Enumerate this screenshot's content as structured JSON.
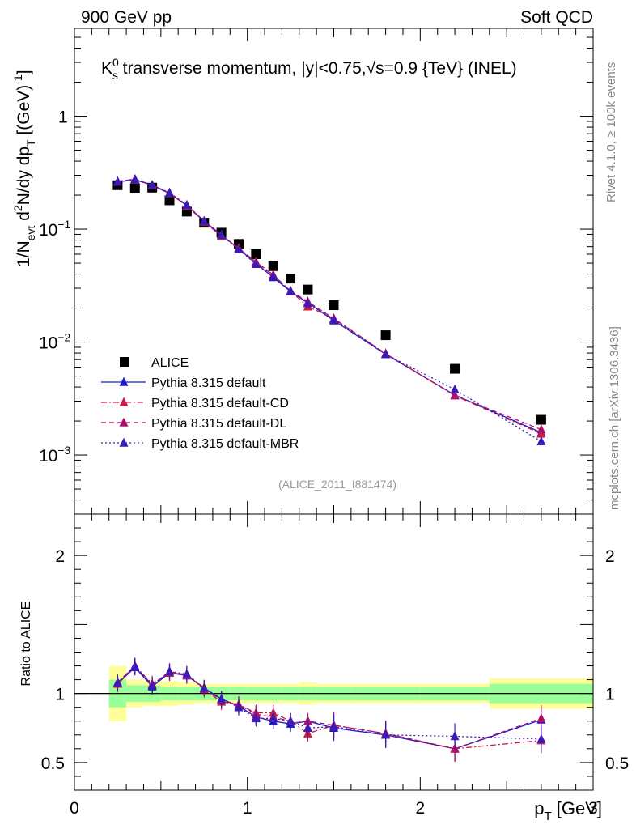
{
  "header": {
    "left": "900 GeV pp",
    "right": "Soft QCD"
  },
  "side_text": {
    "rivet": "Rivet 4.1.0, ≥ 100k events",
    "mcplots": "mcplots.cern.ch [arXiv:1306.3436]"
  },
  "chart_data": {
    "type": "scatter",
    "title": {
      "prefix": "K",
      "sup": "0",
      "sub": "s",
      "text": " transverse momentum, |y|<0.75,√s=0.9 {TeV} (INEL)"
    },
    "analysis_tag": "(ALICE_2011_I881474)",
    "ylabel_main": {
      "a": "1/N",
      "sub1": "evt",
      "b": "  d",
      "sup1": "2",
      "c": "N/dy dp",
      "sub2": "T",
      "d": "  [(GeV)",
      "sup2": "-1",
      "e": "]"
    },
    "ylabel_ratio": "Ratio to ALICE",
    "xlabel": {
      "p": "p",
      "sub": "T",
      "unit": " [GeV]"
    },
    "xlim": [
      0,
      3
    ],
    "ylim_main": [
      0.0003,
      6
    ],
    "ylim_ratio": [
      0.3,
      2.3
    ],
    "x_ticks": [
      "0",
      "1",
      "2",
      "3"
    ],
    "y_ticks_main": [
      {
        "base": "10",
        "exp": "−3",
        "value": 0.001
      },
      {
        "base": "10",
        "exp": "−2",
        "value": 0.01
      },
      {
        "base": "10",
        "exp": "−1",
        "value": 0.1
      },
      {
        "base": "1",
        "exp": "",
        "value": 1
      }
    ],
    "y_ticks_ratio": [
      {
        "label": "0.5",
        "value": 0.5
      },
      {
        "label": "1",
        "value": 1
      },
      {
        "label": "2",
        "value": 2
      }
    ],
    "x": [
      0.25,
      0.35,
      0.45,
      0.55,
      0.65,
      0.75,
      0.85,
      0.95,
      1.05,
      1.15,
      1.25,
      1.35,
      1.5,
      1.8,
      2.2,
      2.7
    ],
    "bin_edges": [
      0.2,
      0.3,
      0.4,
      0.5,
      0.6,
      0.7,
      0.8,
      0.9,
      1.0,
      1.1,
      1.2,
      1.3,
      1.4,
      1.6,
      2.0,
      2.4,
      3.0
    ],
    "data_band_inner": [
      0.1,
      0.06,
      0.06,
      0.05,
      0.05,
      0.05,
      0.05,
      0.05,
      0.05,
      0.05,
      0.05,
      0.05,
      0.05,
      0.05,
      0.05,
      0.07
    ],
    "data_band_outer": [
      0.2,
      0.1,
      0.09,
      0.09,
      0.08,
      0.07,
      0.07,
      0.07,
      0.07,
      0.07,
      0.07,
      0.08,
      0.07,
      0.07,
      0.07,
      0.11
    ],
    "series": [
      {
        "name": "ALICE",
        "color": "#000000",
        "marker": "square",
        "dash": "",
        "values": [
          0.245,
          0.23,
          0.233,
          0.18,
          0.143,
          0.114,
          0.093,
          0.074,
          0.06,
          0.047,
          0.0365,
          0.0292,
          0.0212,
          0.0115,
          0.0058,
          0.00205
        ]
      },
      {
        "name": "Pythia 8.315 default",
        "color": "#1a1acc",
        "marker": "triangle",
        "dash": "",
        "values": [
          0.262,
          0.274,
          0.245,
          0.207,
          0.162,
          0.118,
          0.089,
          0.067,
          0.0495,
          0.0375,
          0.028,
          0.0223,
          0.0155,
          0.0078,
          0.0034,
          0.00158
        ],
        "ratio": [
          1.07,
          1.19,
          1.05,
          1.15,
          1.13,
          1.04,
          0.96,
          0.91,
          0.83,
          0.8,
          0.78,
          0.8,
          0.75,
          0.7,
          0.6,
          0.81
        ]
      },
      {
        "name": "Pythia 8.315 default-CD",
        "color": "#cc1a40",
        "marker": "triangle",
        "dash": "7,3,2,3",
        "values": [
          0.263,
          0.276,
          0.246,
          0.208,
          0.161,
          0.116,
          0.087,
          0.068,
          0.0512,
          0.0395,
          0.0282,
          0.0206,
          0.0162,
          0.0079,
          0.00336,
          0.00154
        ],
        "ratio": [
          1.07,
          1.2,
          1.07,
          1.15,
          1.14,
          1.03,
          0.94,
          0.92,
          0.86,
          0.86,
          0.8,
          0.71,
          0.77,
          0.71,
          0.6,
          0.66
        ]
      },
      {
        "name": "Pythia 8.315 default-DL",
        "color": "#b0106a",
        "marker": "triangle",
        "dash": "6,4",
        "values": [
          0.264,
          0.277,
          0.245,
          0.209,
          0.162,
          0.117,
          0.088,
          0.068,
          0.051,
          0.039,
          0.0283,
          0.0228,
          0.0161,
          0.0079,
          0.00337,
          0.00168
        ],
        "ratio": [
          1.08,
          1.2,
          1.06,
          1.16,
          1.13,
          1.04,
          0.95,
          0.92,
          0.85,
          0.83,
          0.8,
          0.8,
          0.77,
          0.71,
          0.6,
          0.82
        ]
      },
      {
        "name": "Pythia 8.315 default-MBR",
        "color": "#3c1ab8",
        "marker": "triangle",
        "dash": "2,3",
        "values": [
          0.264,
          0.277,
          0.246,
          0.21,
          0.164,
          0.118,
          0.089,
          0.066,
          0.049,
          0.0383,
          0.0284,
          0.022,
          0.0158,
          0.0078,
          0.0038,
          0.00132
        ],
        "ratio": [
          1.08,
          1.2,
          1.06,
          1.16,
          1.14,
          1.04,
          0.96,
          0.9,
          0.82,
          0.82,
          0.8,
          0.75,
          0.76,
          0.7,
          0.69,
          0.67
        ]
      }
    ]
  }
}
